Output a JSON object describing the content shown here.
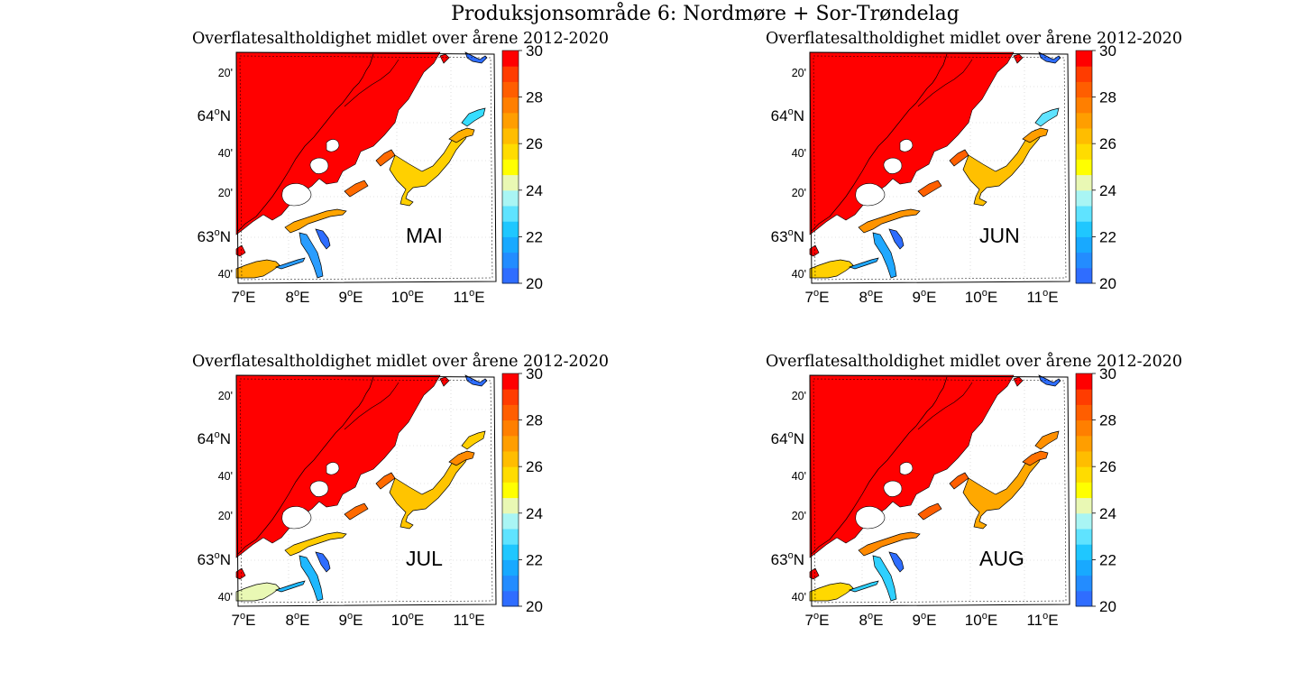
{
  "figure": {
    "title": "Produksjonsområde 6: Nordmøre + Sor-Trøndelag"
  },
  "colors": {
    "land": "#ffffff",
    "sea": "#ff0000",
    "coast": "#000000",
    "colormap": [
      "#2f6dff",
      "#238cff",
      "#18a9ff",
      "#1fc7ff",
      "#5fe3ff",
      "#a9f5f4",
      "#e9f8b4",
      "#ffff00",
      "#ffdc00",
      "#ffbd00",
      "#ff9e00",
      "#ff7f00",
      "#ff5e00",
      "#ff3c00",
      "#ff0000"
    ]
  },
  "panels": [
    {
      "title": "Overflatesaltholdighet midlet over årene 2012-2020",
      "month": "MAI",
      "colorbar": {
        "min": 20,
        "max": 30,
        "ticks": [
          "30",
          "28",
          "26",
          "24",
          "22",
          "20"
        ]
      },
      "lat_ticks": [
        "20'",
        "64°N",
        "40'",
        "20'",
        "63°N",
        "40'"
      ],
      "lon_ticks": [
        "7°E",
        "8°E",
        "9°E",
        "10°E",
        "11°E"
      ],
      "fjord_colors": {
        "upper_inner": "#36ddff",
        "upper_mid": "#ffb000",
        "trondheim_inner": "#ffd000",
        "trondheim_outer": "#ff6a00",
        "south_fjord": "#ffa500",
        "south_branch_1": "#2a9dff",
        "south_branch_2": "#2e6dff",
        "sw_coast": "#ffb000"
      }
    },
    {
      "title": "Overflatesaltholdighet midlet over årene 2012-2020",
      "month": "JUN",
      "colorbar": {
        "min": 20,
        "max": 30,
        "ticks": [
          "30",
          "28",
          "26",
          "24",
          "22",
          "20"
        ]
      },
      "lat_ticks": [
        "20'",
        "64°N",
        "40'",
        "20'",
        "63°N",
        "40'"
      ],
      "lon_ticks": [
        "7°E",
        "8°E",
        "9°E",
        "10°E",
        "11°E"
      ],
      "fjord_colors": {
        "upper_inner": "#5fe3ff",
        "upper_mid": "#ff9e00",
        "trondheim_inner": "#ffc000",
        "trondheim_outer": "#ff6000",
        "south_fjord": "#ff9400",
        "south_branch_1": "#20a8ff",
        "south_branch_2": "#2e6dff",
        "sw_coast": "#ffd000"
      }
    },
    {
      "title": "Overflatesaltholdighet midlet over årene 2012-2020",
      "month": "JUL",
      "colorbar": {
        "min": 20,
        "max": 30,
        "ticks": [
          "30",
          "28",
          "26",
          "24",
          "22",
          "20"
        ]
      },
      "lat_ticks": [
        "20'",
        "64°N",
        "40'",
        "20'",
        "63°N",
        "40'"
      ],
      "lon_ticks": [
        "7°E",
        "8°E",
        "9°E",
        "10°E",
        "11°E"
      ],
      "fjord_colors": {
        "upper_inner": "#ffcf00",
        "upper_mid": "#ff8a00",
        "trondheim_inner": "#ffc400",
        "trondheim_outer": "#ff6a00",
        "south_fjord": "#ffcc00",
        "south_branch_1": "#1fb8ff",
        "south_branch_2": "#2e6dff",
        "sw_coast": "#e9f8b4"
      }
    },
    {
      "title": "Overflatesaltholdighet midlet over årene 2012-2020",
      "month": "AUG",
      "colorbar": {
        "min": 20,
        "max": 30,
        "ticks": [
          "30",
          "28",
          "26",
          "24",
          "22",
          "20"
        ]
      },
      "lat_ticks": [
        "20'",
        "64°N",
        "40'",
        "20'",
        "63°N",
        "40'"
      ],
      "lon_ticks": [
        "7°E",
        "8°E",
        "9°E",
        "10°E",
        "11°E"
      ],
      "fjord_colors": {
        "upper_inner": "#ff9000",
        "upper_mid": "#ff7000",
        "trondheim_inner": "#ffa800",
        "trondheim_outer": "#ff5e00",
        "south_fjord": "#ff8a00",
        "south_branch_1": "#2fd0ff",
        "south_branch_2": "#2e6dff",
        "sw_coast": "#ffd800"
      }
    }
  ]
}
